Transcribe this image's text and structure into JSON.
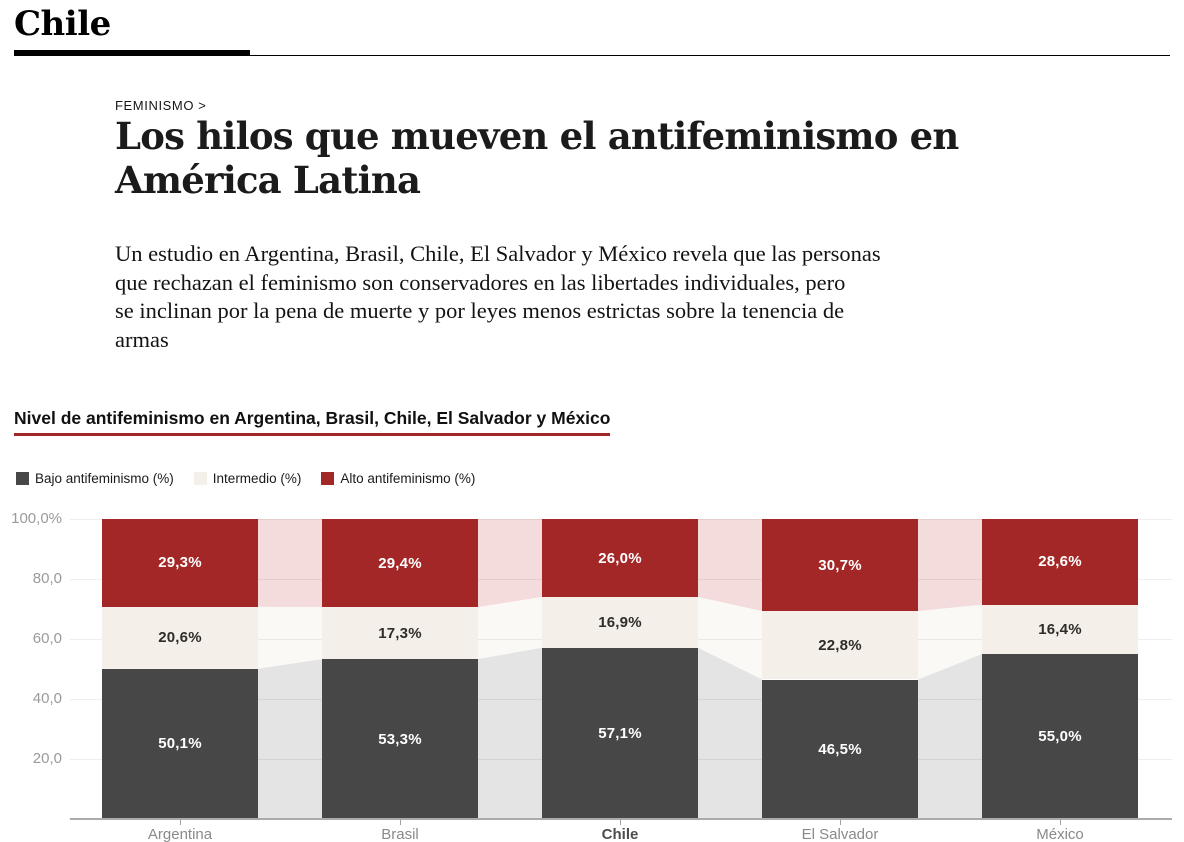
{
  "masthead": {
    "section": "Chile"
  },
  "article": {
    "kicker": "FEMINISMO >",
    "headline": "Los hilos que mueven el antifeminismo en\nAmérica Latina",
    "standfirst": "Un estudio en Argentina, Brasil, Chile, El Salvador y México revela que las personas\nque rechazan el feminismo son conservadores en las libertades individuales, pero\nse inclinan por la pena de muerte y por leyes menos estrictas sobre la tenencia de\narmas"
  },
  "chart": {
    "title_underline_color": "#a32726",
    "axis_color": "#ababab",
    "grid_color": "rgba(17,17,17,0.07)",
    "ytick_color": "#9a9a9a",
    "xlabel_color": "#8a8a8a",
    "xlabel_highlight_color": "#4d4d4d"
  },
  "chart_data": {
    "type": "bar",
    "stacked": true,
    "title": "Nivel de antifeminismo en Argentina, Brasil, Chile, El Salvador y México",
    "categories": [
      "Argentina",
      "Brasil",
      "Chile",
      "El Salvador",
      "México"
    ],
    "highlighted_category": "Chile",
    "series": [
      {
        "name": "Bajo antifeminismo (%)",
        "values": [
          50.1,
          53.3,
          57.1,
          46.5,
          55.0
        ],
        "labels": [
          "50,1%",
          "53,3%",
          "57,1%",
          "46,5%",
          "55,0%"
        ],
        "color": "#474747",
        "connector_color": "#e4e4e4",
        "label_color": "#ffffff"
      },
      {
        "name": "Intermedio (%)",
        "values": [
          20.6,
          17.3,
          16.9,
          22.8,
          16.4
        ],
        "labels": [
          "20,6%",
          "17,3%",
          "16,9%",
          "22,8%",
          "16,4%"
        ],
        "color": "#f4efe9",
        "connector_color": "#fbf9f6",
        "label_color": "#2e2d29"
      },
      {
        "name": "Alto antifeminismo (%)",
        "values": [
          29.3,
          29.4,
          26.0,
          30.7,
          28.6
        ],
        "labels": [
          "29,3%",
          "29,4%",
          "26,0%",
          "30,7%",
          "28,6%"
        ],
        "color": "#a32726",
        "connector_color": "#f3dcdb",
        "label_color": "#ffffff"
      }
    ],
    "yticks": [
      {
        "value": 100,
        "label": "100,0%"
      },
      {
        "value": 80,
        "label": "80,0"
      },
      {
        "value": 60,
        "label": "60,0"
      },
      {
        "value": 40,
        "label": "40,0"
      },
      {
        "value": 20,
        "label": "20,0"
      }
    ],
    "ylim": [
      0,
      100
    ],
    "grid": true,
    "legend_position": "top"
  }
}
